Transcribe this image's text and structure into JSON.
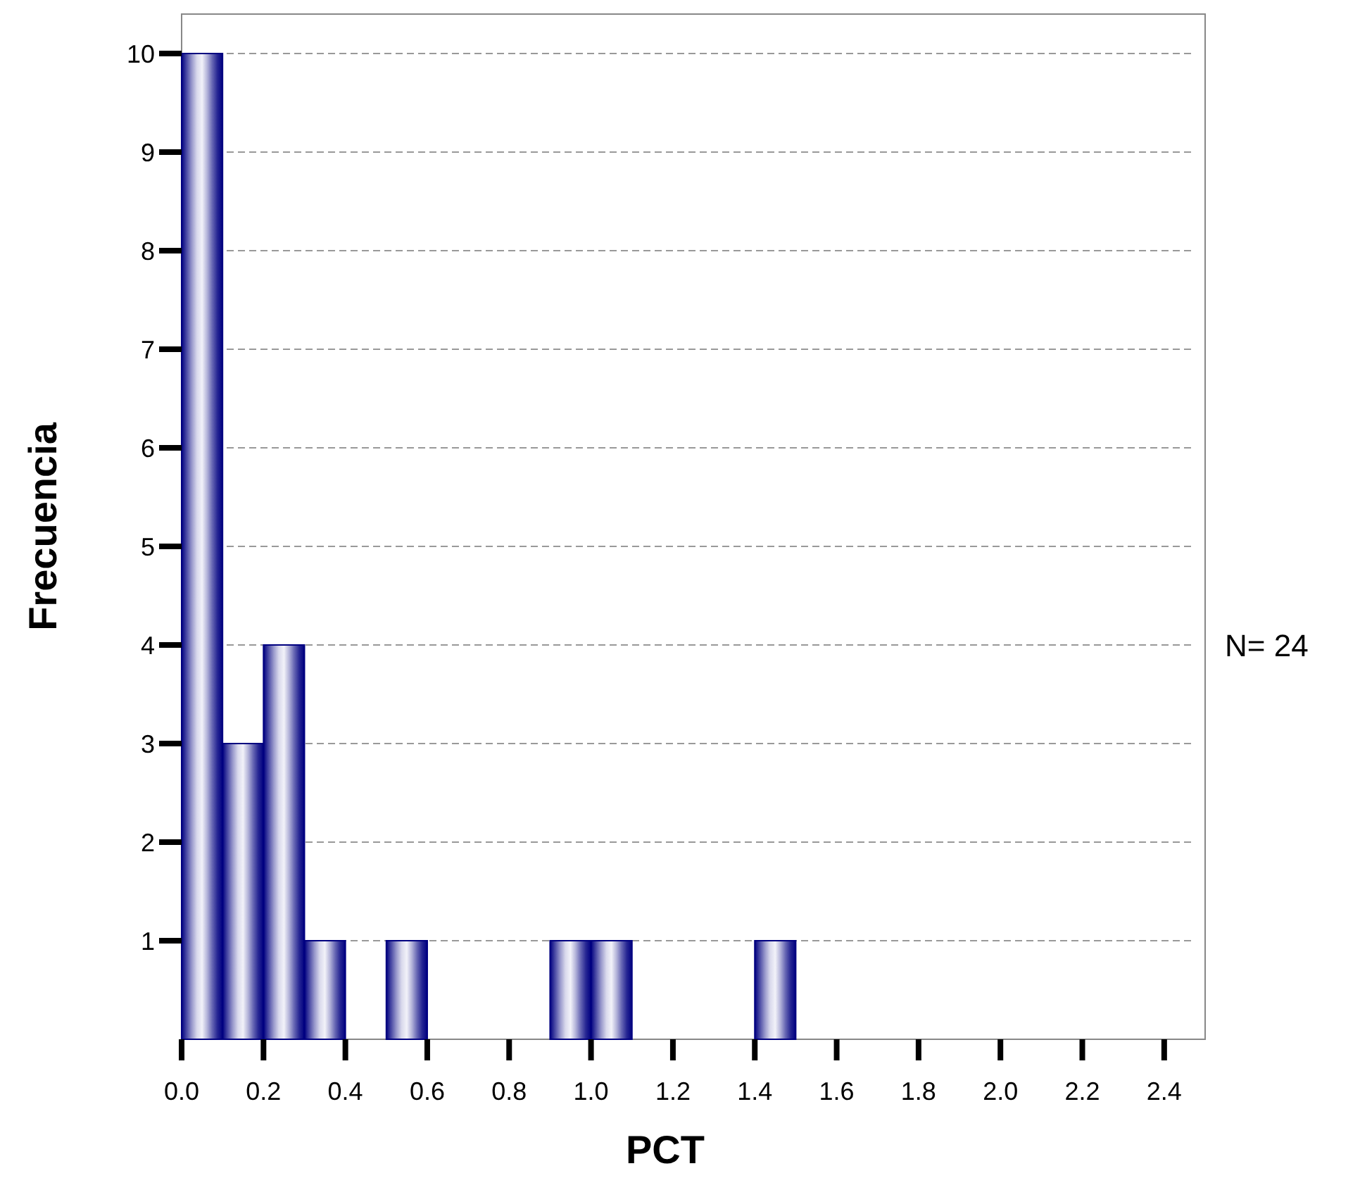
{
  "chart_data": {
    "type": "histogram",
    "xlabel": "PCT",
    "ylabel": "Frecuencia",
    "bins": [
      0,
      0.1,
      0.2,
      0.3,
      0.4,
      0.5,
      0.6,
      0.7,
      0.8,
      0.9,
      1.0,
      1.1,
      1.2,
      1.3,
      1.4,
      1.5
    ],
    "values": [
      10,
      3,
      4,
      1,
      0,
      1,
      0,
      0,
      0,
      1,
      1,
      0,
      0,
      0,
      1
    ],
    "color": "#000080",
    "xlim": [
      0,
      2.5
    ],
    "xticks": [
      {
        "value": 0,
        "label": "0.0"
      },
      0.2,
      0.4,
      0.6,
      0.8,
      {
        "value": 1,
        "label": "1.0"
      },
      1.2,
      1.4,
      1.6,
      1.8,
      {
        "value": 2,
        "label": "2.0"
      },
      2.2,
      2.4
    ],
    "ylim": [
      0,
      10.4
    ],
    "yticks": [
      1,
      2,
      3,
      4,
      5,
      6,
      7,
      8,
      9,
      10
    ],
    "grid": "y",
    "annotations": [
      "N= 24"
    ]
  }
}
